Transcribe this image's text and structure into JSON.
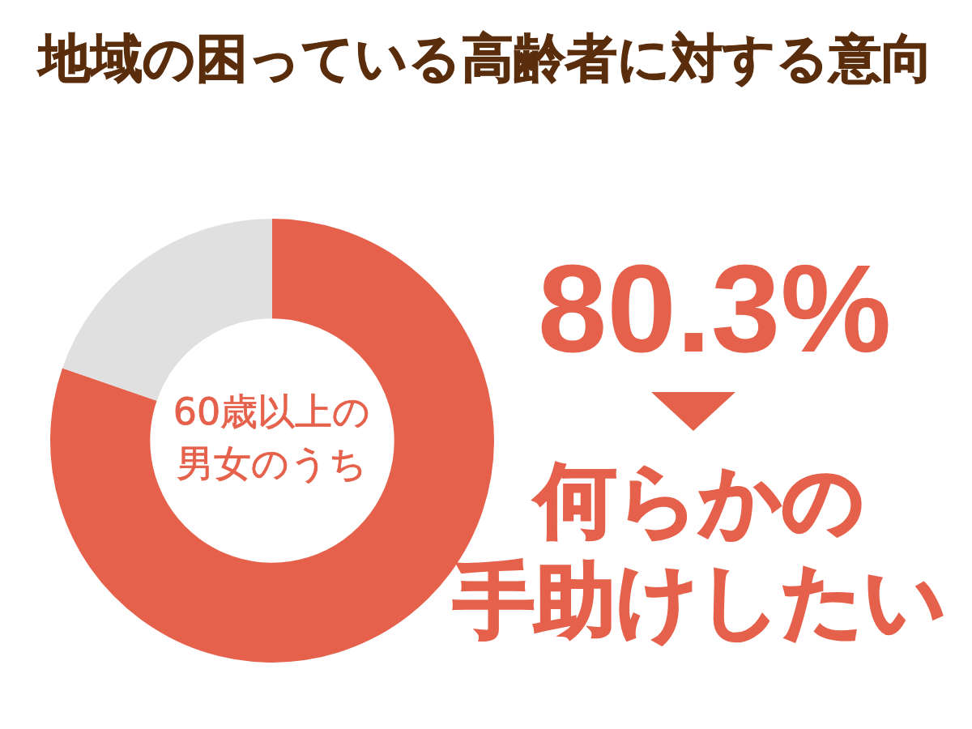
{
  "chart_data": {
    "type": "donut",
    "title": "地域の困っている高齢者に対する意向",
    "categories": [
      "何らかの手助けしたい",
      null
    ],
    "values": [
      80.3,
      19.7
    ],
    "colors": [
      "#e5614b",
      "#e0e0e0"
    ],
    "value_labels": [
      "80.3%",
      null
    ],
    "annotations": [
      "60歳以上の男女のうち"
    ]
  }
}
